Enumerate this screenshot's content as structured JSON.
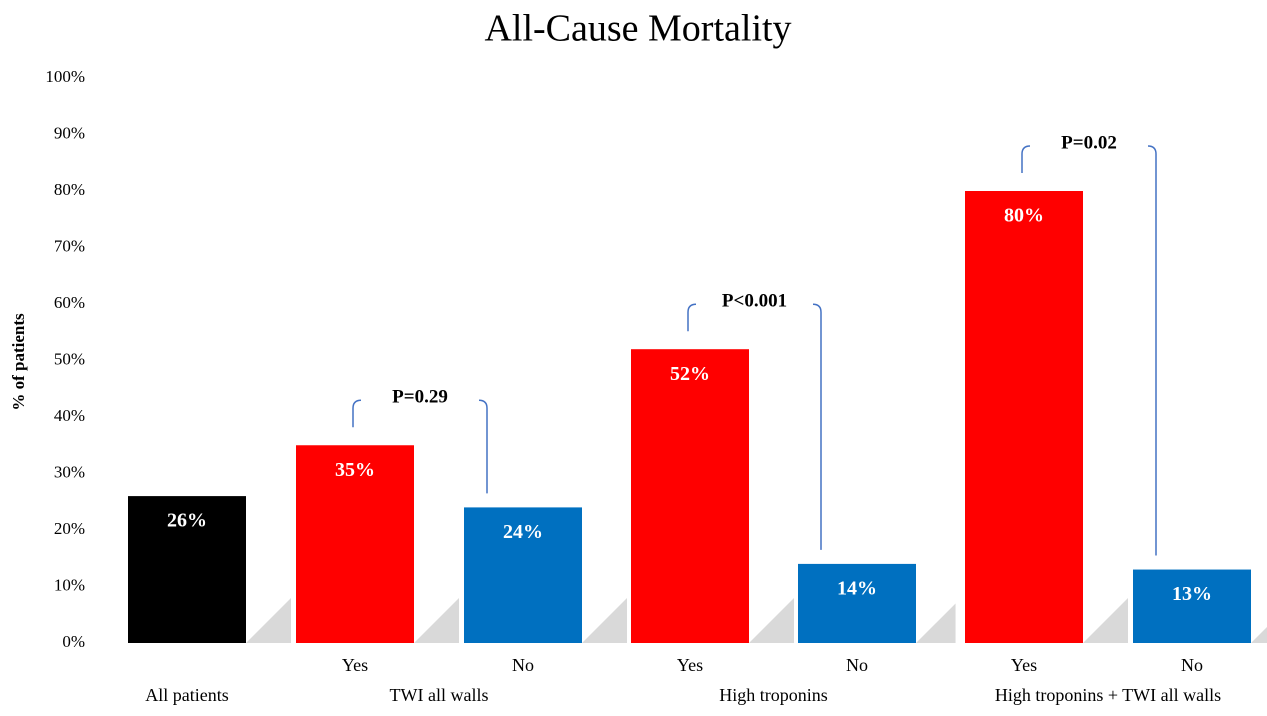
{
  "chart_data": {
    "type": "bar",
    "title": "All-Cause Mortality",
    "y_label": "% of patients",
    "categories": [
      null,
      "Yes",
      "No",
      "Yes",
      "No",
      "Yes",
      "No"
    ],
    "groups": [
      {
        "name": "All patients",
        "size": 1
      },
      {
        "name": "TWI all walls",
        "size": 2
      },
      {
        "name": "High troponins",
        "size": 2
      },
      {
        "name": "High troponins + TWI all walls",
        "size": 2
      }
    ],
    "values": [
      26,
      35,
      24,
      52,
      14,
      80,
      13
    ],
    "value_labels": [
      "26%",
      "35%",
      "24%",
      "52%",
      "14%",
      "80%",
      "13%"
    ],
    "colors": [
      "#000000",
      "#ff0000",
      "#0070c0",
      "#ff0000",
      "#0070c0",
      "#ff0000",
      "#0070c0"
    ],
    "ylim": [
      0,
      100
    ],
    "yticks": [
      {
        "value": 0,
        "label": "0%"
      },
      {
        "value": 10,
        "label": "10%"
      },
      {
        "value": 20,
        "label": "20%"
      },
      {
        "value": 30,
        "label": "30%"
      },
      {
        "value": 40,
        "label": "40%"
      },
      {
        "value": 50,
        "label": "50%"
      },
      {
        "value": 60,
        "label": "60%"
      },
      {
        "value": 70,
        "label": "70%"
      },
      {
        "value": 80,
        "label": "80%"
      },
      {
        "value": 90,
        "label": "90%"
      },
      {
        "value": 100,
        "label": "100%"
      }
    ],
    "grid": false,
    "annotations": [
      {
        "text": "P=0.29",
        "between": [
          1,
          2
        ]
      },
      {
        "text": "P<0.001",
        "between": [
          3,
          4
        ]
      },
      {
        "text": "P=0.02",
        "between": [
          5,
          6
        ]
      }
    ]
  }
}
